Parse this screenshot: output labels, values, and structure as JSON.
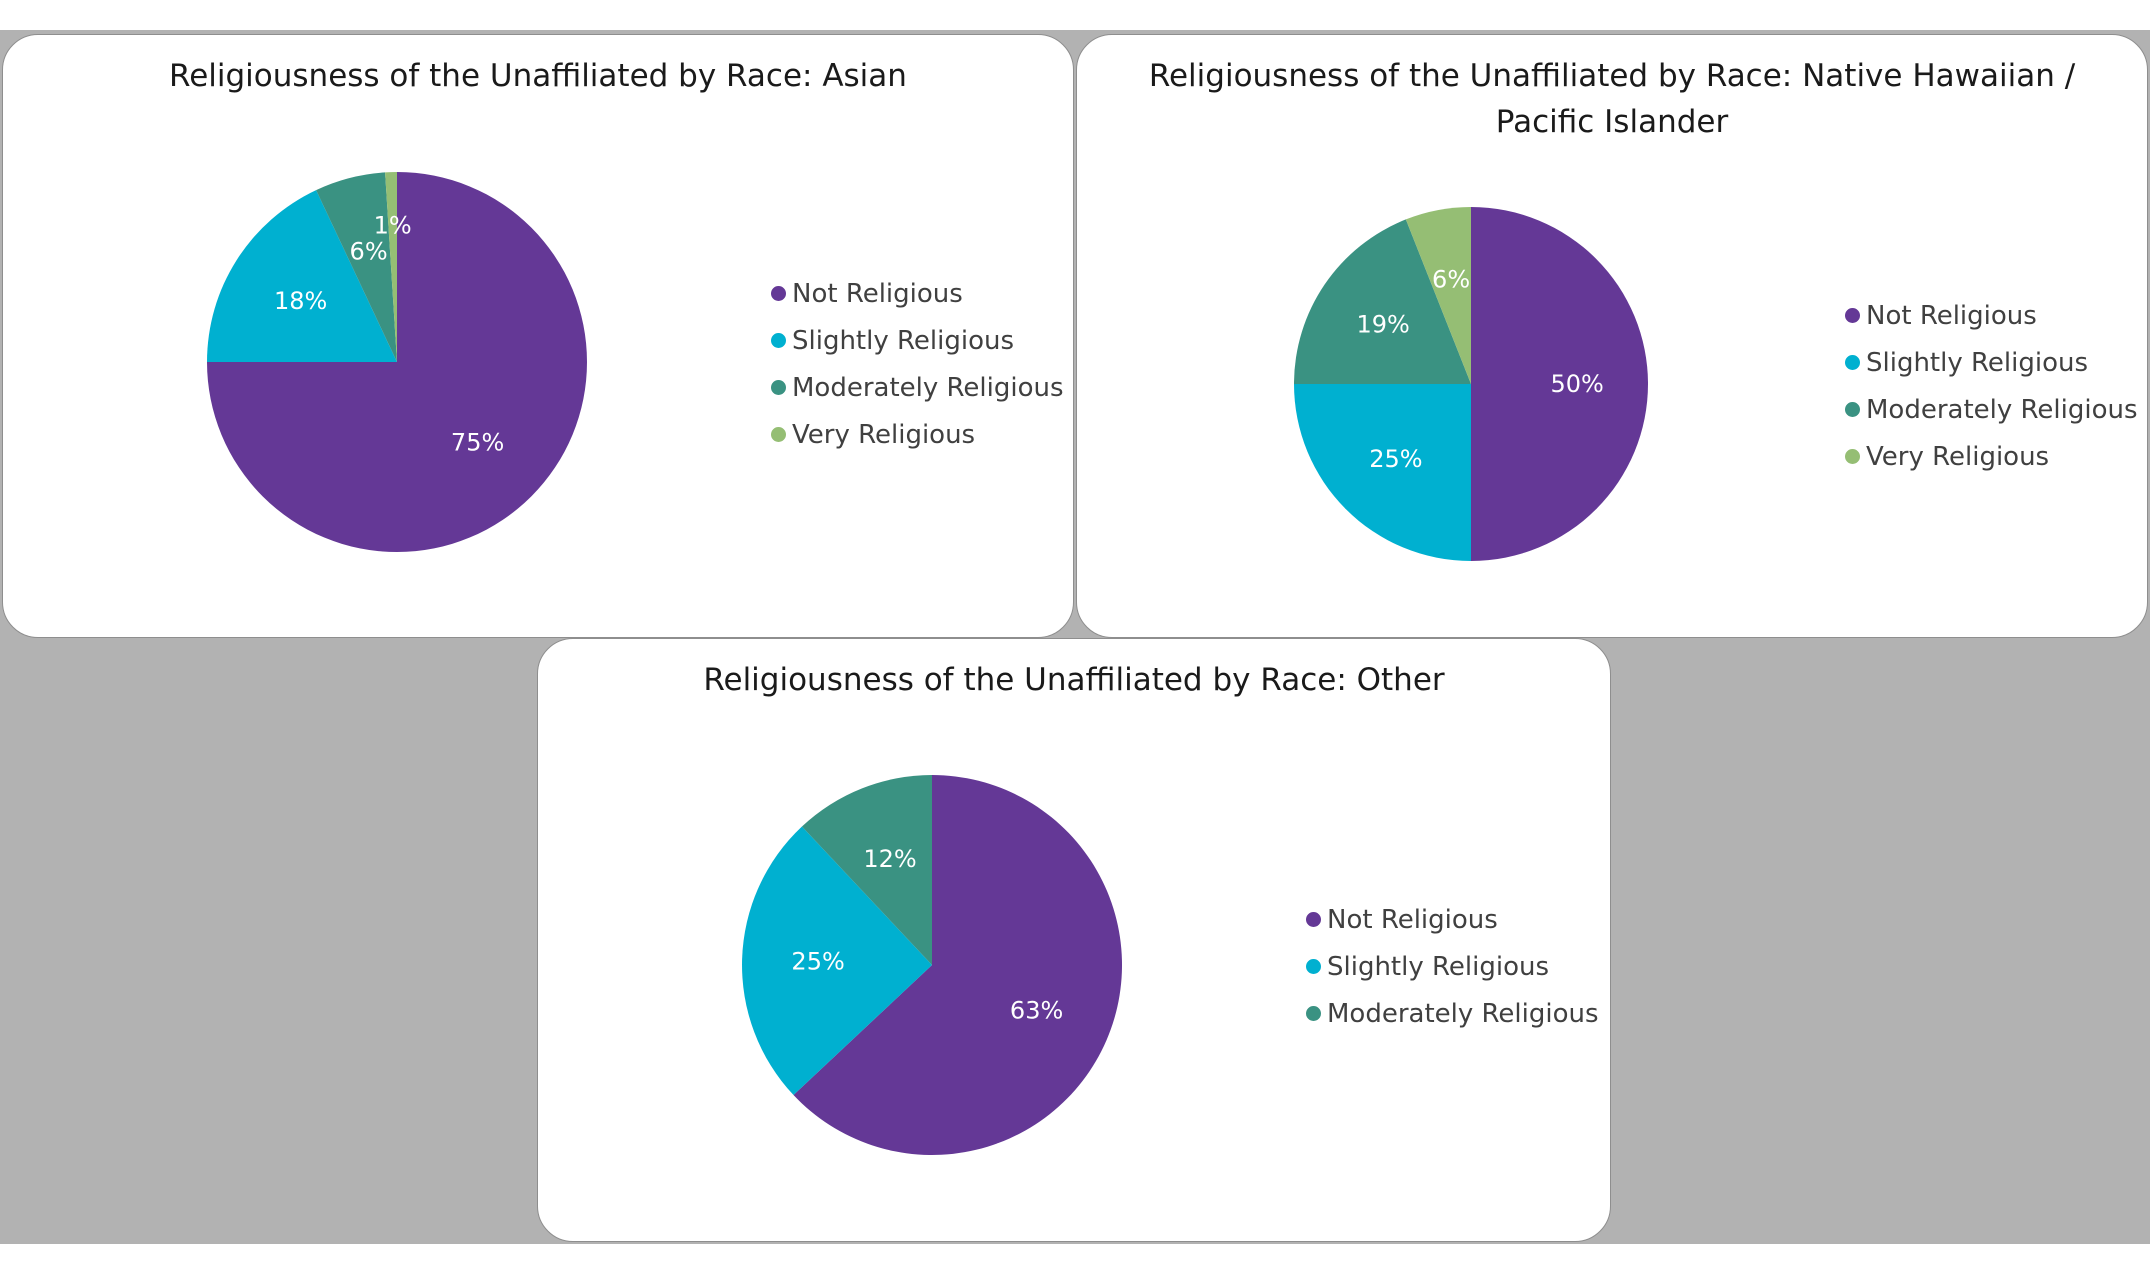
{
  "colors": {
    "Not Religious": "#643896",
    "Slightly Religious": "#00b0d0",
    "Moderately Religious": "#3a9282",
    "Very Religious": "#95be74"
  },
  "chart_data": [
    {
      "type": "pie",
      "title": "Religiousness of the Unaffiliated by Race: Asian",
      "labels": [
        "Not Religious",
        "Slightly Religious",
        "Moderately Religious",
        "Very Religious"
      ],
      "values": [
        75,
        18,
        6,
        1
      ],
      "data_labels": [
        "75%",
        "18%",
        "6%",
        "1%"
      ],
      "legend": "right"
    },
    {
      "type": "pie",
      "title": "Religiousness of the Unaffiliated by Race: Native Hawaiian / Pacific Islander",
      "labels": [
        "Not Religious",
        "Slightly Religious",
        "Moderately Religious",
        "Very Religious"
      ],
      "values": [
        50,
        25,
        19,
        6
      ],
      "data_labels": [
        "50%",
        "25%",
        "19%",
        "6%"
      ],
      "legend": "right"
    },
    {
      "type": "pie",
      "title": "Religiousness of the Unaffiliated by Race: Other",
      "labels": [
        "Not Religious",
        "Slightly Religious",
        "Moderately Religious"
      ],
      "values": [
        63,
        25,
        12
      ],
      "data_labels": [
        "63%",
        "25%",
        "12%"
      ],
      "legend": "right"
    }
  ]
}
